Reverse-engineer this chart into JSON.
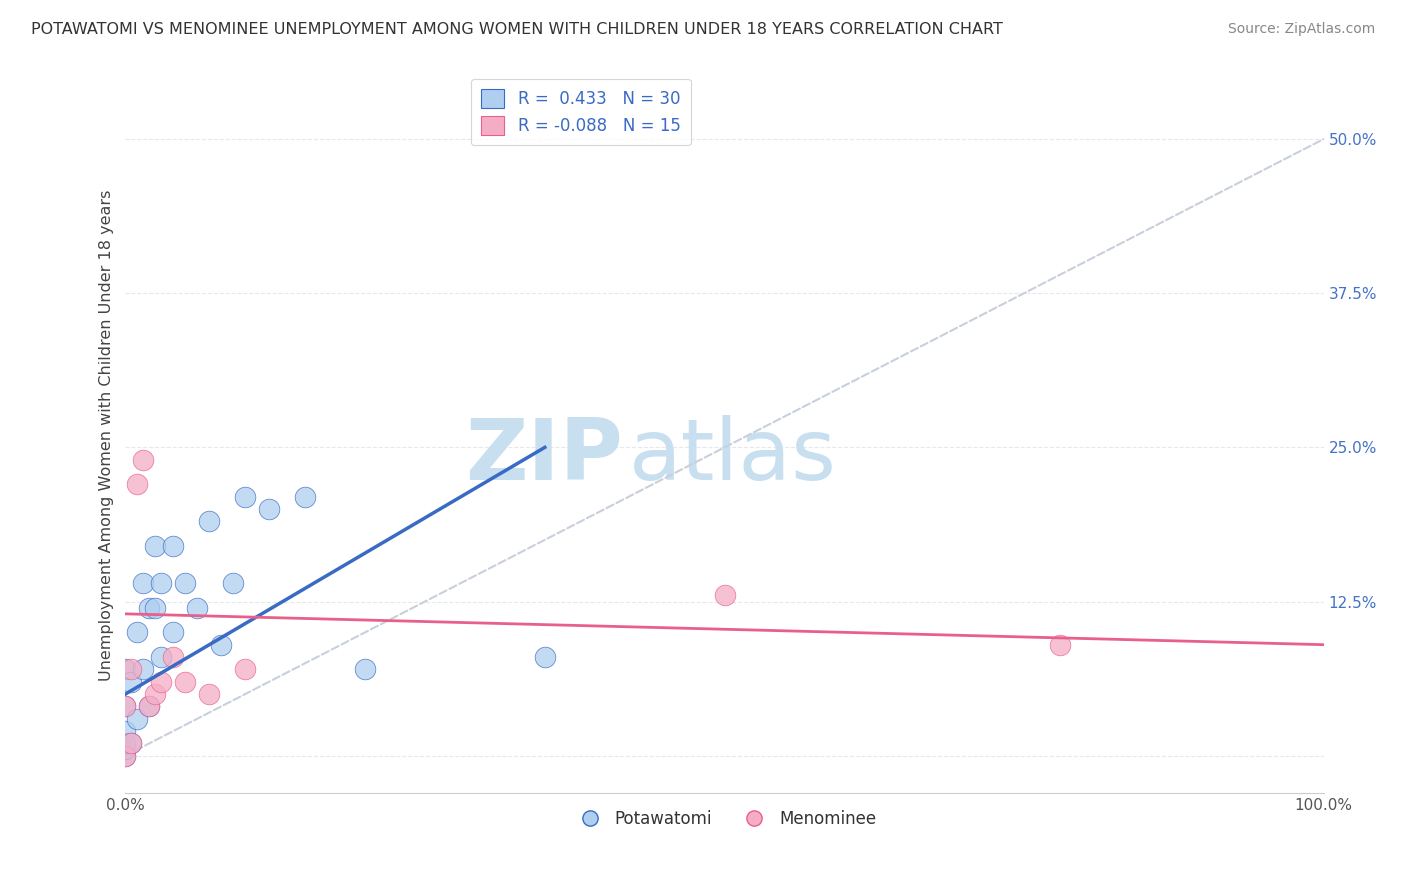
{
  "title": "POTAWATOMI VS MENOMINEE UNEMPLOYMENT AMONG WOMEN WITH CHILDREN UNDER 18 YEARS CORRELATION CHART",
  "source": "Source: ZipAtlas.com",
  "ylabel": "Unemployment Among Women with Children Under 18 years",
  "xlim": [
    0,
    1.0
  ],
  "ylim": [
    -0.03,
    0.55
  ],
  "xticks": [
    0.0,
    0.125,
    0.25,
    0.375,
    0.5,
    0.625,
    0.75,
    0.875,
    1.0
  ],
  "xticklabels": [
    "0.0%",
    "",
    "",
    "",
    "",
    "",
    "",
    "",
    "100.0%"
  ],
  "yticks": [
    0.0,
    0.125,
    0.25,
    0.375,
    0.5
  ],
  "yticklabels": [
    "",
    "12.5%",
    "25.0%",
    "37.5%",
    "50.0%"
  ],
  "legend_r1_r": "R = ",
  "legend_r1_val": " 0.433",
  "legend_r1_n": " N = ",
  "legend_r1_nval": "30",
  "legend_r2_r": "R = ",
  "legend_r2_val": "-0.088",
  "legend_r2_n": " N = ",
  "legend_r2_nval": "15",
  "potawatomi_color": "#aecff0",
  "menominee_color": "#f5adc6",
  "trend_blue": "#3a6bc4",
  "trend_pink": "#e8608a",
  "ref_line_color": "#c8d0dc",
  "watermark_zip": "ZIP",
  "watermark_atlas": "atlas",
  "watermark_color": "#c8dff0",
  "potawatomi_x": [
    0.0,
    0.0,
    0.0,
    0.0,
    0.0,
    0.0,
    0.005,
    0.005,
    0.01,
    0.01,
    0.015,
    0.015,
    0.02,
    0.02,
    0.025,
    0.025,
    0.03,
    0.03,
    0.04,
    0.04,
    0.05,
    0.06,
    0.07,
    0.08,
    0.09,
    0.1,
    0.12,
    0.15,
    0.2,
    0.35
  ],
  "potawatomi_y": [
    0.0,
    0.005,
    0.01,
    0.02,
    0.04,
    0.07,
    0.01,
    0.06,
    0.03,
    0.1,
    0.07,
    0.14,
    0.04,
    0.12,
    0.12,
    0.17,
    0.08,
    0.14,
    0.1,
    0.17,
    0.14,
    0.12,
    0.19,
    0.09,
    0.14,
    0.21,
    0.2,
    0.21,
    0.07,
    0.08
  ],
  "menominee_x": [
    0.0,
    0.0,
    0.005,
    0.005,
    0.01,
    0.015,
    0.02,
    0.025,
    0.03,
    0.04,
    0.05,
    0.07,
    0.1,
    0.5,
    0.78
  ],
  "menominee_y": [
    0.0,
    0.04,
    0.01,
    0.07,
    0.22,
    0.24,
    0.04,
    0.05,
    0.06,
    0.08,
    0.06,
    0.05,
    0.07,
    0.13,
    0.09
  ],
  "background_color": "#ffffff",
  "grid_color": "#e8e8e8",
  "blue_trend_x0": 0.0,
  "blue_trend_y0": 0.05,
  "blue_trend_x1": 0.35,
  "blue_trend_y1": 0.25,
  "pink_trend_x0": 0.0,
  "pink_trend_y0": 0.115,
  "pink_trend_x1": 1.0,
  "pink_trend_y1": 0.09
}
